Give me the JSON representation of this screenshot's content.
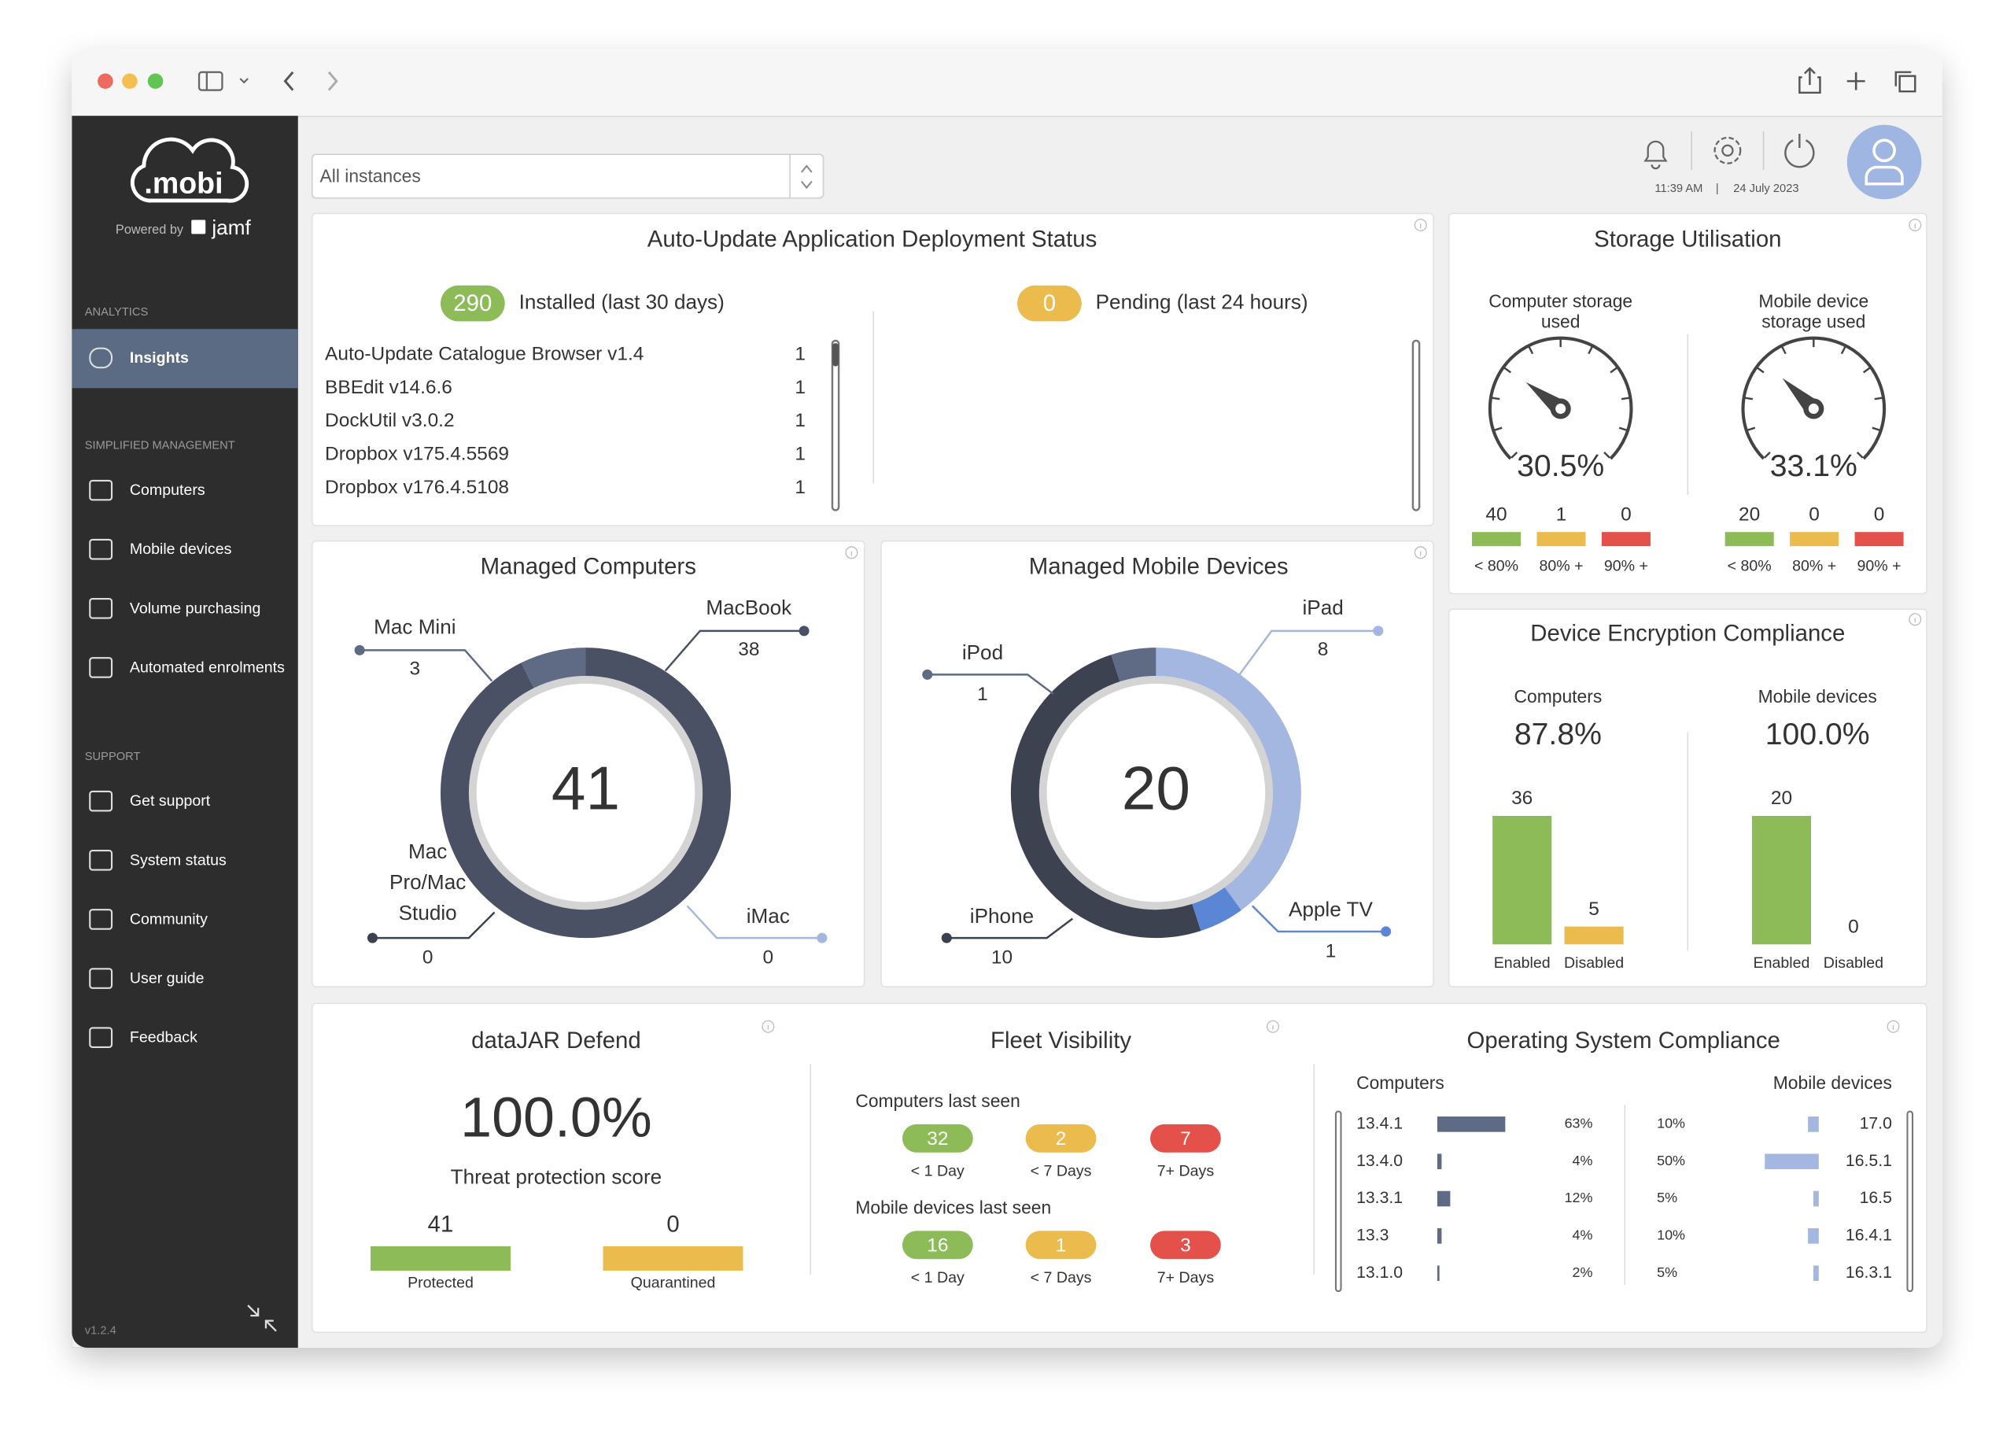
{
  "sidebar": {
    "logo": ".mobi",
    "powered_by": "Powered by",
    "partner": "jamf",
    "sections": [
      {
        "heading": "ANALYTICS",
        "items": [
          "Insights"
        ]
      },
      {
        "heading": "SIMPLIFIED MANAGEMENT",
        "items": [
          "Computers",
          "Mobile devices",
          "Volume purchasing",
          "Automated enrolments"
        ]
      },
      {
        "heading": "SUPPORT",
        "items": [
          "Get support",
          "System status",
          "Community",
          "User guide",
          "Feedback"
        ]
      }
    ],
    "version": "v1.2.4"
  },
  "header": {
    "instance_filter": "All instances",
    "time": "11:39 AM",
    "separator": "|",
    "date": "24 July 2023"
  },
  "auto_update": {
    "title": "Auto-Update Application Deployment Status",
    "installed": {
      "count": 290,
      "label": "Installed (last 30 days)"
    },
    "pending": {
      "count": 0,
      "label": "Pending (last 24 hours)"
    },
    "apps": [
      {
        "name": "Auto-Update Catalogue Browser v1.4",
        "count": 1
      },
      {
        "name": "BBEdit v14.6.6",
        "count": 1
      },
      {
        "name": "DockUtil v3.0.2",
        "count": 1
      },
      {
        "name": "Dropbox v175.4.5569",
        "count": 1
      },
      {
        "name": "Dropbox v176.4.5108",
        "count": 1
      }
    ]
  },
  "storage": {
    "title": "Storage Utilisation",
    "gauges": [
      {
        "label": "Computer storage used",
        "value": 30.5,
        "value_label": "30.5%",
        "buckets": [
          {
            "count": 40,
            "label": "< 80%"
          },
          {
            "count": 1,
            "label": "80% +"
          },
          {
            "count": 0,
            "label": "90% +"
          }
        ]
      },
      {
        "label": "Mobile device storage used",
        "value": 33.1,
        "value_label": "33.1%",
        "buckets": [
          {
            "count": 20,
            "label": "< 80%"
          },
          {
            "count": 0,
            "label": "80% +"
          },
          {
            "count": 0,
            "label": "90% +"
          }
        ]
      }
    ]
  },
  "managed_computers": {
    "title": "Managed Computers",
    "total": 41,
    "segments": [
      {
        "name": "MacBook",
        "value": 38
      },
      {
        "name": "iMac",
        "value": 0
      },
      {
        "name": "Mac Pro/Mac Studio",
        "value": 0
      },
      {
        "name": "Mac Mini",
        "value": 3
      }
    ]
  },
  "managed_mobile": {
    "title": "Managed Mobile Devices",
    "total": 20,
    "segments": [
      {
        "name": "iPad",
        "value": 8
      },
      {
        "name": "Apple TV",
        "value": 1
      },
      {
        "name": "iPhone",
        "value": 10
      },
      {
        "name": "iPod",
        "value": 1
      }
    ]
  },
  "encryption": {
    "title": "Device Encryption Compliance",
    "enabled_label": "Enabled",
    "disabled_label": "Disabled",
    "groups": [
      {
        "name": "Computers",
        "percent": 87.8,
        "percent_label": "87.8%",
        "enabled": 36,
        "disabled": 5
      },
      {
        "name": "Mobile devices",
        "percent": 100.0,
        "percent_label": "100.0%",
        "enabled": 20,
        "disabled": 0
      }
    ]
  },
  "defend": {
    "title": "dataJAR Defend",
    "score": 100.0,
    "score_label": "100.0%",
    "score_caption": "Threat protection score",
    "protected": {
      "count": 41,
      "label": "Protected"
    },
    "quarantined": {
      "count": 0,
      "label": "Quarantined"
    }
  },
  "fleet": {
    "title": "Fleet Visibility",
    "groups": [
      {
        "heading": "Computers last seen",
        "buckets": [
          {
            "count": 32,
            "label": "< 1 Day"
          },
          {
            "count": 2,
            "label": "< 7 Days"
          },
          {
            "count": 7,
            "label": "7+ Days"
          }
        ]
      },
      {
        "heading": "Mobile devices last seen",
        "buckets": [
          {
            "count": 16,
            "label": "< 1 Day"
          },
          {
            "count": 1,
            "label": "< 7 Days"
          },
          {
            "count": 3,
            "label": "7+ Days"
          }
        ]
      }
    ]
  },
  "os_compliance": {
    "title": "Operating System Compliance",
    "groups": [
      {
        "heading": "Computers",
        "rows": [
          {
            "version": "13.4.1",
            "percent": 63,
            "label": "63%"
          },
          {
            "version": "13.4.0",
            "percent": 4,
            "label": "4%"
          },
          {
            "version": "13.3.1",
            "percent": 12,
            "label": "12%"
          },
          {
            "version": "13.3",
            "percent": 4,
            "label": "4%"
          },
          {
            "version": "13.1.0",
            "percent": 2,
            "label": "2%"
          }
        ]
      },
      {
        "heading": "Mobile devices",
        "rows": [
          {
            "version": "17.0",
            "percent": 10,
            "label": "10%"
          },
          {
            "version": "16.5.1",
            "percent": 50,
            "label": "50%"
          },
          {
            "version": "16.5",
            "percent": 5,
            "label": "5%"
          },
          {
            "version": "16.4.1",
            "percent": 10,
            "label": "10%"
          },
          {
            "version": "16.3.1",
            "percent": 5,
            "label": "5%"
          }
        ]
      }
    ]
  }
}
